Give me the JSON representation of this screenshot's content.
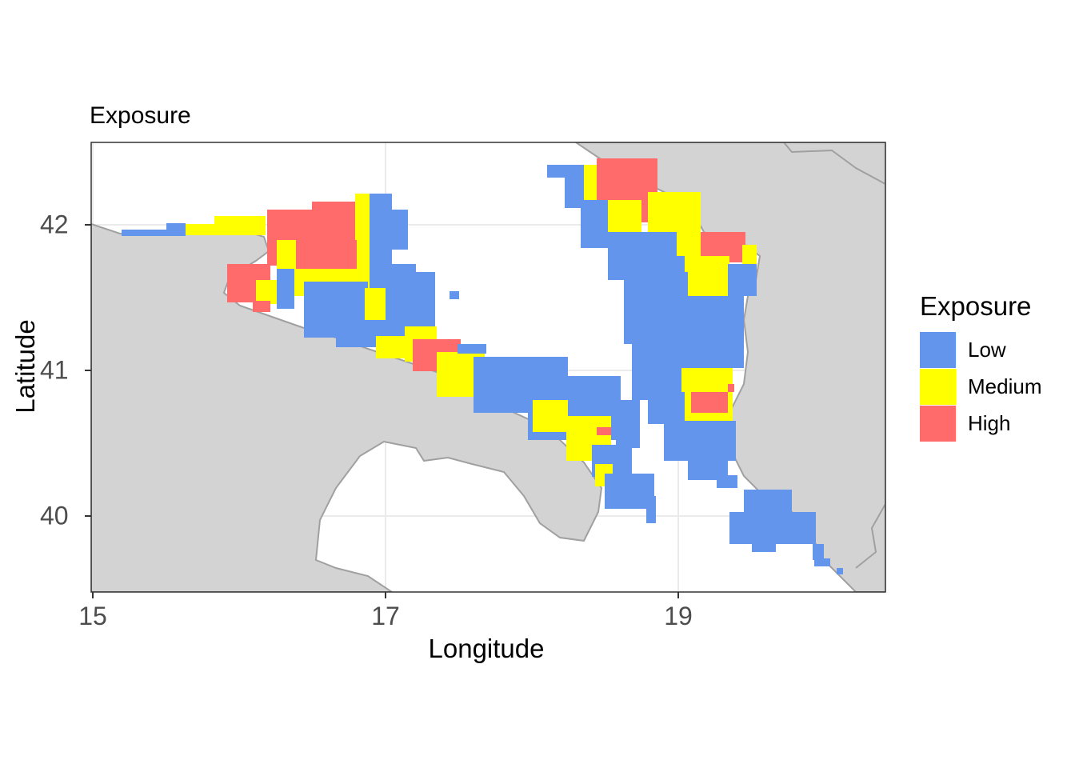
{
  "title": "Exposure",
  "x_axis": {
    "label": "Longitude",
    "ticks": [
      "15",
      "17",
      "19"
    ]
  },
  "y_axis": {
    "label": "Latitude",
    "ticks": [
      "42",
      "41",
      "40"
    ]
  },
  "legend": {
    "title": "Exposure",
    "items": [
      {
        "label": "Low",
        "color": "#6495ED"
      },
      {
        "label": "Medium",
        "color": "#FFFF00"
      },
      {
        "label": "High",
        "color": "#FF6A6A"
      }
    ]
  },
  "colors": {
    "land": "#D3D3D3",
    "coast_line": "#A0A0A0",
    "grid": "#EBEBEB"
  },
  "map_data": {
    "extent": {
      "lon": [
        15.0,
        20.4
      ],
      "lat": [
        39.5,
        42.55
      ]
    },
    "regions": [
      {
        "level": "Low",
        "lon_range": [
          15.2,
          15.6
        ],
        "lat_range": [
          41.9,
          41.95
        ]
      },
      {
        "level": "Medium",
        "lon_range": [
          15.6,
          16.3
        ],
        "lat_range": [
          41.9,
          42.05
        ]
      },
      {
        "level": "High",
        "lon_range": [
          16.3,
          16.8
        ],
        "lat_range": [
          41.7,
          42.1
        ]
      },
      {
        "level": "Low",
        "lon_range": [
          16.6,
          17.4
        ],
        "lat_range": [
          41.0,
          42.1
        ]
      },
      {
        "level": "High",
        "lon_range": [
          15.9,
          16.3
        ],
        "lat_range": [
          41.4,
          41.6
        ]
      },
      {
        "level": "High",
        "lon_range": [
          17.2,
          17.5
        ],
        "lat_range": [
          40.95,
          41.15
        ]
      },
      {
        "level": "Low",
        "lon_range": [
          17.6,
          18.5
        ],
        "lat_range": [
          40.6,
          41.05
        ]
      },
      {
        "level": "Medium",
        "lon_range": [
          18.1,
          18.6
        ],
        "lat_range": [
          40.3,
          40.7
        ]
      },
      {
        "level": "Low",
        "lon_range": [
          18.5,
          18.8
        ],
        "lat_range": [
          40.0,
          40.5
        ]
      },
      {
        "level": "Low",
        "lon_range": [
          18.1,
          18.5
        ],
        "lat_range": [
          41.95,
          42.35
        ]
      },
      {
        "level": "High",
        "lon_range": [
          18.5,
          18.8
        ],
        "lat_range": [
          42.0,
          42.35
        ]
      },
      {
        "level": "Medium",
        "lon_range": [
          18.8,
          19.2
        ],
        "lat_range": [
          41.8,
          42.2
        ]
      },
      {
        "level": "Low",
        "lon_range": [
          18.7,
          19.5
        ],
        "lat_range": [
          40.2,
          41.8
        ]
      },
      {
        "level": "Medium",
        "lon_range": [
          19.2,
          19.5
        ],
        "lat_range": [
          41.5,
          41.8
        ]
      },
      {
        "level": "High",
        "lon_range": [
          19.15,
          19.45
        ],
        "lat_range": [
          41.75,
          41.85
        ]
      },
      {
        "level": "Medium",
        "lon_range": [
          19.0,
          19.35
        ],
        "lat_range": [
          40.65,
          41.0
        ]
      },
      {
        "level": "High",
        "lon_range": [
          19.1,
          19.35
        ],
        "lat_range": [
          40.7,
          40.85
        ]
      },
      {
        "level": "Low",
        "lon_range": [
          19.3,
          20.0
        ],
        "lat_range": [
          39.6,
          40.2
        ]
      }
    ]
  }
}
